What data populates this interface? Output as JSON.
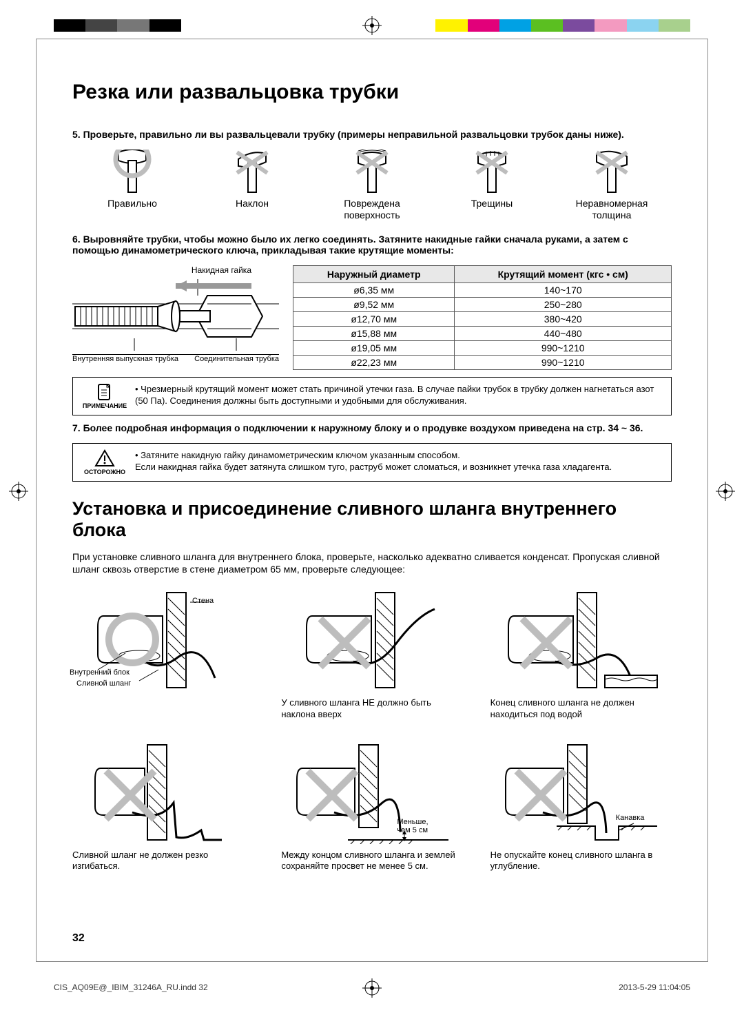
{
  "colorbar_left": [
    "#000000",
    "#3b3b3b",
    "#6a6a6a",
    "#000000"
  ],
  "colorbar_right": [
    "#fff200",
    "#e2007a",
    "#00a1e4",
    "#5bbf21",
    "#7b4b9e",
    "#f39ac0",
    "#8bd3f0",
    "#a8d08d"
  ],
  "heading1": "Резка или развальцовка трубки",
  "step5": "5.   Проверьте, правильно ли вы развальцевали трубку (примеры неправильной развальцовки трубок даны ниже).",
  "flare_labels": [
    "Правильно",
    "Наклон",
    "Повреждена\nповерхность",
    "Трещины",
    "Неравномерная\nтолщина"
  ],
  "step6": "6.   Выровняйте трубки, чтобы можно было их легко соединять. Затяните накидные гайки сначала руками, а затем с помощью динамометрического ключа, прикладывая такие крутящие моменты:",
  "pipe_labels": {
    "top": "Накидная гайка",
    "left": "Внутренняя выпускная трубка",
    "right": "Соединительная трубка"
  },
  "table": {
    "head": [
      "Наружный диаметр",
      "Крутящий момент (кгс • см)"
    ],
    "rows": [
      [
        "ø6,35 мм",
        "140~170"
      ],
      [
        "ø9,52 мм",
        "250~280"
      ],
      [
        "ø12,70 мм",
        "380~420"
      ],
      [
        "ø15,88 мм",
        "440~480"
      ],
      [
        "ø19,05 мм",
        "990~1210"
      ],
      [
        "ø22,23 мм",
        "990~1210"
      ]
    ]
  },
  "note": {
    "label": "ПРИМЕЧАНИЕ",
    "text": "Чрезмерный крутящий момент может стать причиной утечки газа. В случае пайки трубок в трубку должен нагнетаться азот (50 Па). Соединения должны быть доступными и удобными для обслуживания."
  },
  "step7": "7.   Более подробная информация о подключении к наружному блоку и о продувке воздухом приведена на стр. 34 ~ 36.",
  "caution": {
    "label": "ОСТОРОЖНО",
    "line1": "Затяните накидную гайку динамометрическим ключом указанным способом.",
    "line2": "Если накидная гайка будет затянута слишком туго, раструб может сломаться, и возникнет утечка газа хладагента."
  },
  "heading2": "Установка и присоединение сливного шланга внутреннего блока",
  "intro": "При установке сливного шланга для внутреннего блока, проверьте, насколько адекватно сливается конденсат. Пропуская сливной шланг сквозь отверстие в стене диаметром 65 мм, проверьте следующее:",
  "drain": {
    "r1c1_labels": {
      "wall": "Стена",
      "unit": "Внутренний блок",
      "hose": "Сливной шланг"
    },
    "r1c2_cap": "У сливного шланга НЕ должно быть наклона вверх",
    "r1c3_cap": "Конец сливного шланга не должен находиться под водой",
    "r2c1_cap": "Сливной шланг не должен резко изгибаться.",
    "r2c2_label": "Меньше,\nчем 5 см",
    "r2c2_cap": "Между концом сливного шланга и землей сохраняйте просвет не менее 5 см.",
    "r2c3_label": "Канавка",
    "r2c3_cap": "Не опускайте конец сливного шланга в углубление."
  },
  "page_number": "32",
  "footer": {
    "left": "CIS_AQ09E@_IBIM_31246A_RU.indd   32",
    "right": "2013-5-29   11:04:05"
  }
}
